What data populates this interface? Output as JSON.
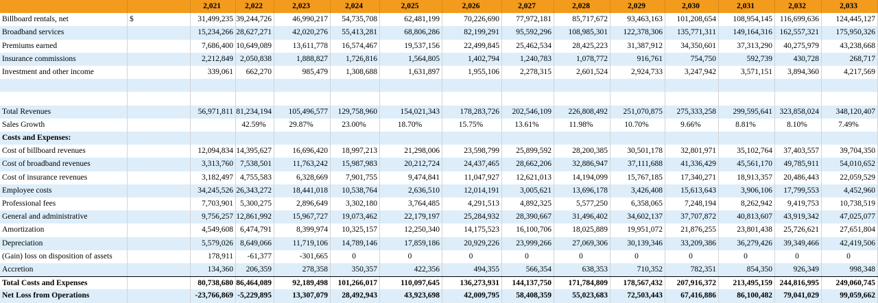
{
  "currency_symbol": "$",
  "years": [
    "2,021",
    "2,022",
    "2,023",
    "2,024",
    "2,025",
    "2,026",
    "2,027",
    "2,028",
    "2,029",
    "2,030",
    "2,031",
    "2,032",
    "2,033"
  ],
  "rows": [
    {
      "label": "Billboard rentals, net",
      "currency": "$",
      "values": [
        "31,499,235",
        "39,244,726",
        "46,990,217",
        "54,735,708",
        "62,481,199",
        "70,226,690",
        "77,972,181",
        "85,717,672",
        "93,463,163",
        "101,208,654",
        "108,954,145",
        "116,699,636",
        "124,445,127"
      ]
    },
    {
      "label": "Broadband services",
      "values": [
        "15,234,266",
        "28,627,271",
        "42,020,276",
        "55,413,281",
        "68,806,286",
        "82,199,291",
        "95,592,296",
        "108,985,301",
        "122,378,306",
        "135,771,311",
        "149,164,316",
        "162,557,321",
        "175,950,326"
      ]
    },
    {
      "label": "Premiums earned",
      "values": [
        "7,686,400",
        "10,649,089",
        "13,611,778",
        "16,574,467",
        "19,537,156",
        "22,499,845",
        "25,462,534",
        "28,425,223",
        "31,387,912",
        "34,350,601",
        "37,313,290",
        "40,275,979",
        "43,238,668"
      ]
    },
    {
      "label": "Insurance commissions",
      "values": [
        "2,212,849",
        "2,050,838",
        "1,888,827",
        "1,726,816",
        "1,564,805",
        "1,402,794",
        "1,240,783",
        "1,078,772",
        "916,761",
        "754,750",
        "592,739",
        "430,728",
        "268,717"
      ]
    },
    {
      "label": "Investment and other income",
      "values": [
        "339,061",
        "662,270",
        "985,479",
        "1,308,688",
        "1,631,897",
        "1,955,106",
        "2,278,315",
        "2,601,524",
        "2,924,733",
        "3,247,942",
        "3,571,151",
        "3,894,360",
        "4,217,569"
      ]
    },
    {
      "label": "",
      "values": []
    },
    {
      "label": "",
      "values": []
    },
    {
      "label": "Total Revenues",
      "values": [
        "56,971,811",
        "81,234,194",
        "105,496,577",
        "129,758,960",
        "154,021,343",
        "178,283,726",
        "202,546,109",
        "226,808,492",
        "251,070,875",
        "275,333,258",
        "299,595,641",
        "323,858,024",
        "348,120,407"
      ]
    },
    {
      "label": "Sales Growth",
      "values": [
        "",
        "42.59%",
        "29.87%",
        "23.00%",
        "18.70%",
        "15.75%",
        "13.61%",
        "11.98%",
        "10.70%",
        "9.66%",
        "8.81%",
        "8.10%",
        "7.49%"
      ]
    },
    {
      "label": "Costs and Expenses:",
      "section": true,
      "values": []
    },
    {
      "label": "Cost of billboard revenues",
      "values": [
        "12,094,834",
        "14,395,627",
        "16,696,420",
        "18,997,213",
        "21,298,006",
        "23,598,799",
        "25,899,592",
        "28,200,385",
        "30,501,178",
        "32,801,971",
        "35,102,764",
        "37,403,557",
        "39,704,350"
      ]
    },
    {
      "label": "Cost of broadband revenues",
      "values": [
        "3,313,760",
        "7,538,501",
        "11,763,242",
        "15,987,983",
        "20,212,724",
        "24,437,465",
        "28,662,206",
        "32,886,947",
        "37,111,688",
        "41,336,429",
        "45,561,170",
        "49,785,911",
        "54,010,652"
      ]
    },
    {
      "label": "Cost of insurance revenues",
      "values": [
        "3,182,497",
        "4,755,583",
        "6,328,669",
        "7,901,755",
        "9,474,841",
        "11,047,927",
        "12,621,013",
        "14,194,099",
        "15,767,185",
        "17,340,271",
        "18,913,357",
        "20,486,443",
        "22,059,529"
      ]
    },
    {
      "label": "Employee costs",
      "values": [
        "34,245,526",
        "26,343,272",
        "18,441,018",
        "10,538,764",
        "2,636,510",
        "12,014,191",
        "3,005,621",
        "13,696,178",
        "3,426,408",
        "15,613,643",
        "3,906,106",
        "17,799,553",
        "4,452,960"
      ]
    },
    {
      "label": "Professional fees",
      "values": [
        "7,703,901",
        "5,300,275",
        "2,896,649",
        "3,302,180",
        "3,764,485",
        "4,291,513",
        "4,892,325",
        "5,577,250",
        "6,358,065",
        "7,248,194",
        "8,262,942",
        "9,419,753",
        "10,738,519"
      ]
    },
    {
      "label": "General and administrative",
      "values": [
        "9,756,257",
        "12,861,992",
        "15,967,727",
        "19,073,462",
        "22,179,197",
        "25,284,932",
        "28,390,667",
        "31,496,402",
        "34,602,137",
        "37,707,872",
        "40,813,607",
        "43,919,342",
        "47,025,077"
      ]
    },
    {
      "label": "Amortization",
      "values": [
        "4,549,608",
        "6,474,791",
        "8,399,974",
        "10,325,157",
        "12,250,340",
        "14,175,523",
        "16,100,706",
        "18,025,889",
        "19,951,072",
        "21,876,255",
        "23,801,438",
        "25,726,621",
        "27,651,804"
      ]
    },
    {
      "label": "Depreciation",
      "values": [
        "5,579,026",
        "8,649,066",
        "11,719,106",
        "14,789,146",
        "17,859,186",
        "20,929,226",
        "23,999,266",
        "27,069,306",
        "30,139,346",
        "33,209,386",
        "36,279,426",
        "39,349,466",
        "42,419,506"
      ]
    },
    {
      "label": "(Gain) loss on disposition of assets",
      "values": [
        "178,911",
        "-61,377",
        "-301,665",
        "0",
        "0",
        "0",
        "0",
        "0",
        "0",
        "0",
        "0",
        "0",
        "0"
      ]
    },
    {
      "label": "Accretion",
      "values": [
        "134,360",
        "206,359",
        "278,358",
        "350,357",
        "422,356",
        "494,355",
        "566,354",
        "638,353",
        "710,352",
        "782,351",
        "854,350",
        "926,349",
        "998,348"
      ]
    },
    {
      "label": "Total Costs and Expenses",
      "bold": true,
      "topline": true,
      "values": [
        "80,738,680",
        "86,464,089",
        "92,189,498",
        "101,266,017",
        "110,097,645",
        "136,273,931",
        "144,137,750",
        "171,784,809",
        "178,567,432",
        "207,916,372",
        "213,495,159",
        "244,816,995",
        "249,060,745"
      ]
    },
    {
      "label": "Net Loss from Operations",
      "bold": true,
      "values": [
        "-23,766,869",
        "-5,229,895",
        "13,307,079",
        "28,492,943",
        "43,923,698",
        "42,009,795",
        "58,408,359",
        "55,023,683",
        "72,503,443",
        "67,416,886",
        "86,100,482",
        "79,041,029",
        "99,059,662"
      ]
    }
  ]
}
